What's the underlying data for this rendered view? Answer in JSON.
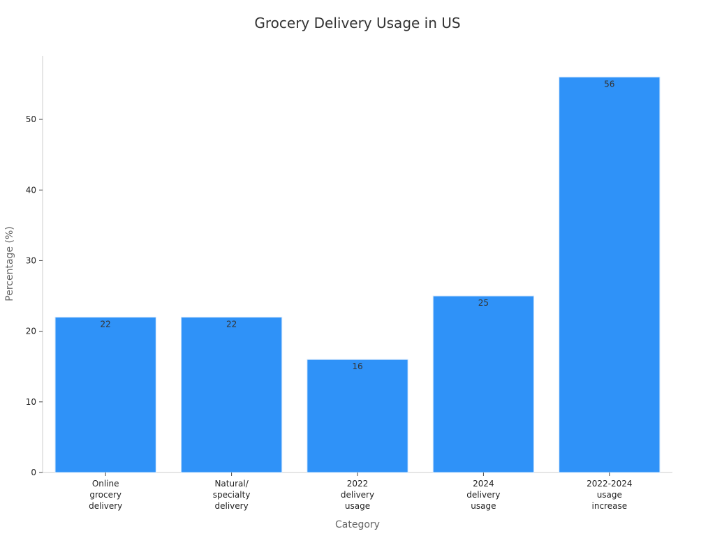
{
  "chart_data": {
    "type": "bar",
    "title": "Grocery Delivery Usage in US",
    "xlabel": "Category",
    "ylabel": "Percentage (%)",
    "categories": [
      [
        "Online",
        "grocery",
        "delivery"
      ],
      [
        "Natural/",
        "specialty",
        "delivery"
      ],
      [
        "2022",
        "delivery",
        "usage"
      ],
      [
        "2024",
        "delivery",
        "usage"
      ],
      [
        "2022-2024",
        "usage",
        "increase"
      ]
    ],
    "values": [
      22,
      22,
      16,
      25,
      56
    ],
    "data_labels": [
      "22",
      "22",
      "16",
      "25",
      "56"
    ],
    "yticks": [
      0,
      10,
      20,
      30,
      40,
      50
    ],
    "ylim": [
      0,
      59
    ],
    "grid": false,
    "legend": "none",
    "colors": {
      "bar": "#2f92f8",
      "bar_edge": "#d6e9fd",
      "axis": "#cccccc",
      "tick_text": "#222222",
      "label_text": "#666666",
      "title_text": "#333333",
      "data_label_text": "#333333"
    }
  }
}
